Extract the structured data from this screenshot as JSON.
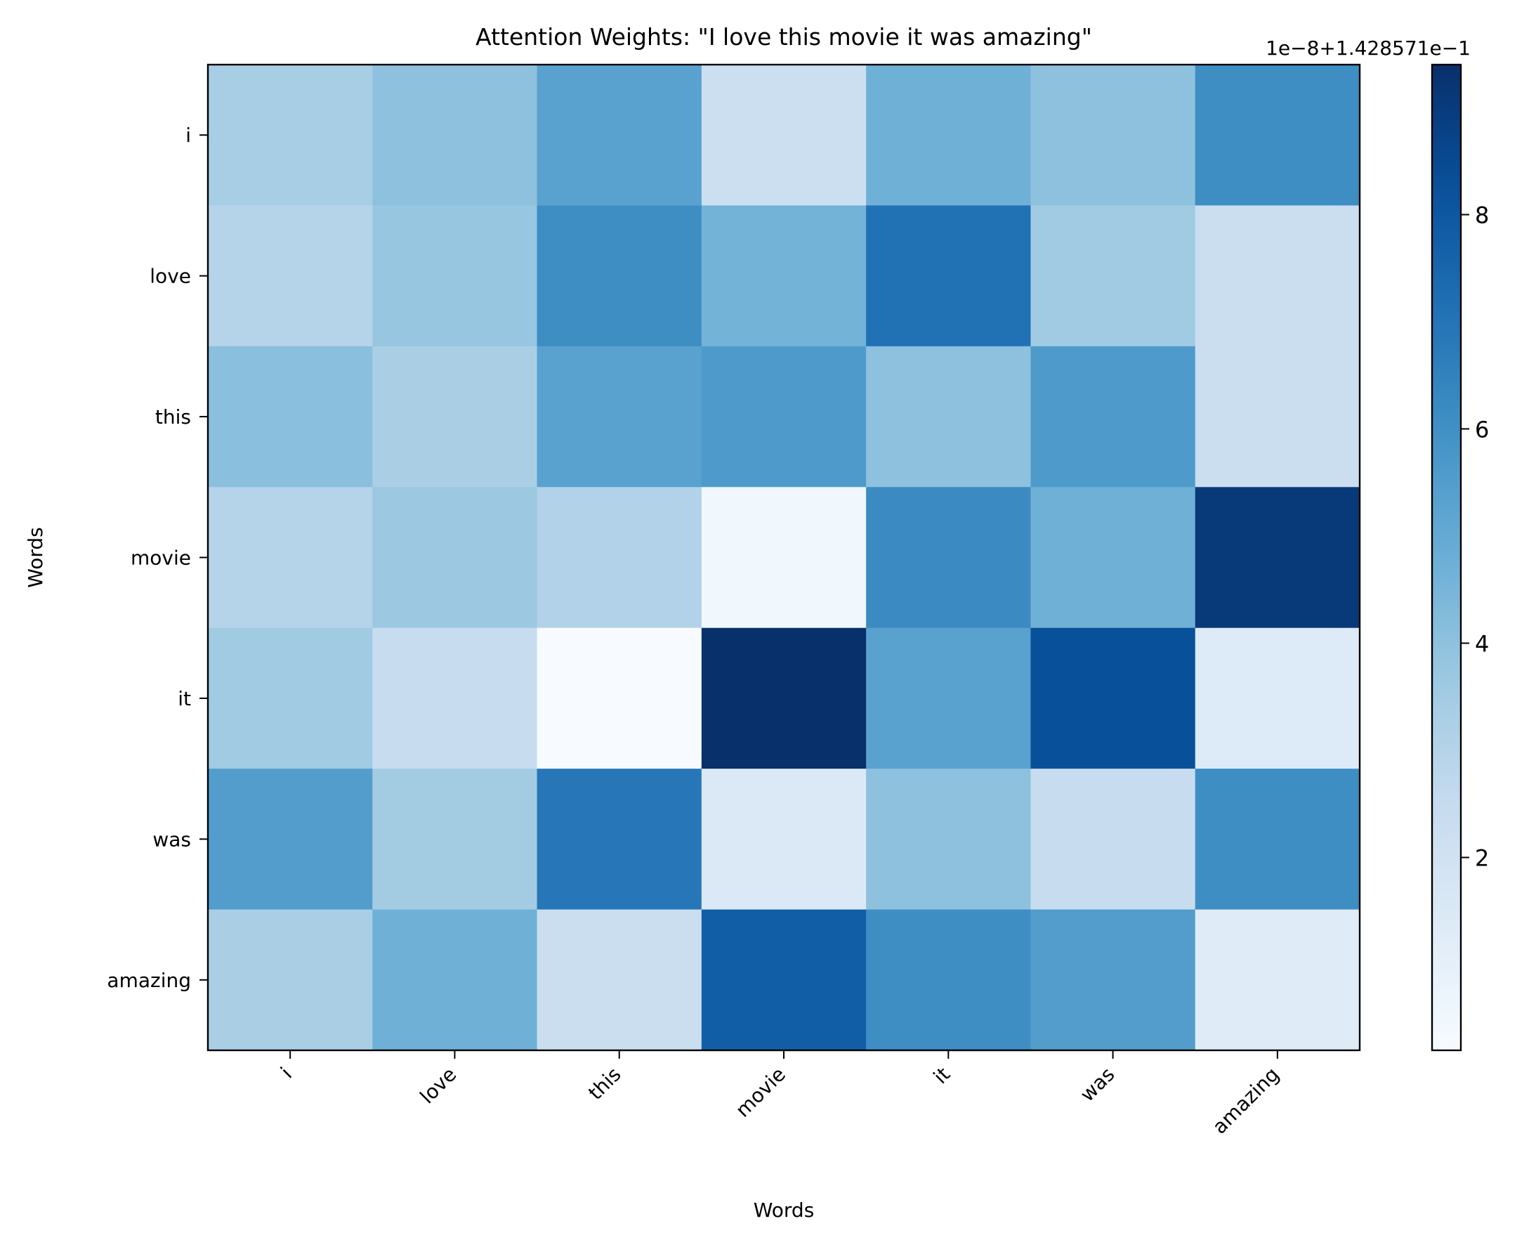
{
  "chart_data": {
    "type": "heatmap",
    "title": "Attention Weights: \"I love this movie it was amazing\"",
    "xlabel": "Words",
    "ylabel": "Words",
    "x_categories": [
      "i",
      "love",
      "this",
      "movie",
      "it",
      "was",
      "amazing"
    ],
    "y_categories": [
      "i",
      "love",
      "this",
      "movie",
      "it",
      "was",
      "amazing"
    ],
    "values": [
      [
        3.4,
        4.0,
        5.3,
        2.2,
        4.7,
        4.0,
        6.1
      ],
      [
        3.0,
        3.8,
        6.1,
        4.6,
        7.1,
        3.6,
        2.3
      ],
      [
        4.1,
        3.3,
        5.3,
        5.6,
        4.0,
        5.6,
        2.3
      ],
      [
        3.0,
        3.7,
        3.1,
        0.5,
        6.2,
        4.7,
        9.1
      ],
      [
        3.6,
        2.4,
        0.2,
        9.4,
        5.3,
        8.3,
        1.4
      ],
      [
        5.5,
        3.5,
        6.9,
        1.5,
        4.0,
        2.4,
        6.1
      ],
      [
        3.3,
        4.7,
        2.3,
        7.8,
        6.1,
        5.5,
        1.3
      ]
    ],
    "zlim": [
      0.2,
      9.4
    ],
    "colormap": "Blues",
    "colorbar": {
      "ticks": [
        2,
        4,
        6,
        8
      ],
      "tick_labels": [
        "2",
        "4",
        "6",
        "8"
      ],
      "offset_label": "1e−8+1.428571e−1"
    },
    "grid": false
  }
}
